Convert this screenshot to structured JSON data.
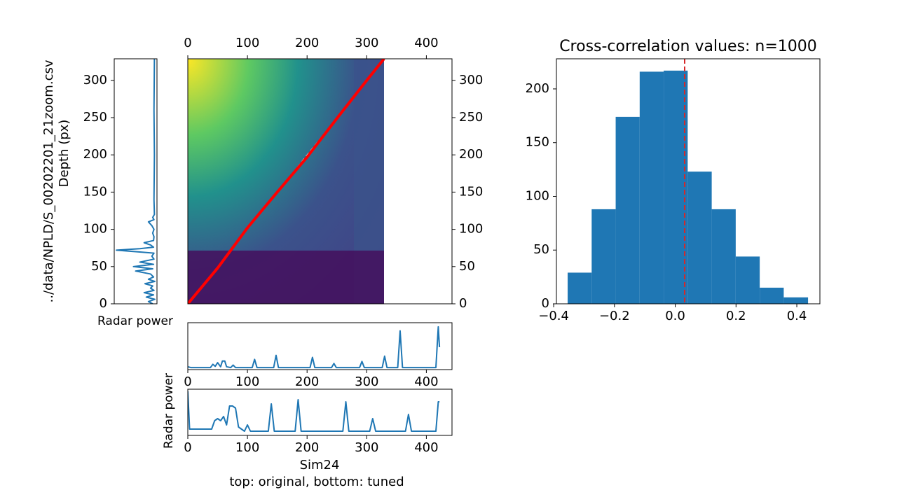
{
  "chart_data": [
    {
      "type": "line",
      "orientation": "vertical",
      "ylabel_lines": [
        "../data/NPLD/S_00202201_21zoom.csv",
        "Depth (px)"
      ],
      "xlabel": "Radar power",
      "xlim": [
        0,
        1
      ],
      "ylim": [
        0,
        329
      ],
      "yticks": [
        0,
        50,
        100,
        150,
        200,
        250,
        300
      ],
      "series": [
        {
          "color": "#1f77b4",
          "x": [
            0,
            3,
            6,
            9,
            12,
            15,
            18,
            21,
            24,
            27,
            30,
            33,
            36,
            40,
            44,
            47,
            50,
            53,
            56,
            60,
            64,
            68,
            70,
            72,
            74,
            76,
            79,
            82,
            85,
            90,
            95,
            100,
            105,
            110,
            113,
            116,
            120,
            140,
            200,
            260,
            329
          ],
          "values": [
            0.9,
            0.8,
            0.95,
            0.75,
            0.92,
            0.7,
            0.93,
            0.85,
            0.9,
            0.72,
            0.95,
            0.8,
            0.92,
            0.85,
            0.5,
            0.9,
            0.45,
            0.92,
            0.6,
            0.93,
            0.88,
            0.93,
            0.5,
            0.05,
            0.6,
            0.92,
            0.85,
            0.7,
            0.92,
            0.93,
            0.9,
            0.93,
            0.88,
            0.8,
            0.93,
            0.9,
            0.94,
            0.93,
            0.94,
            0.93,
            0.94
          ]
        }
      ]
    },
    {
      "type": "image",
      "xlim": [
        0,
        443
      ],
      "ylim": [
        0,
        329
      ],
      "xticks": [
        0,
        100,
        200,
        300,
        400
      ],
      "yticks": [
        0,
        50,
        100,
        150,
        200,
        250,
        300
      ],
      "series": [
        {
          "color": "#ffffff",
          "style": "dashed",
          "x": [
            0,
            329
          ],
          "values": [
            0,
            329
          ]
        },
        {
          "color": "#ff0000",
          "style": "solid",
          "x": [
            0,
            50,
            100,
            150,
            200,
            250,
            300,
            329
          ],
          "values": [
            0,
            48,
            102,
            150,
            197,
            249,
            300,
            329
          ]
        }
      ]
    },
    {
      "type": "line",
      "xlim": [
        0,
        443
      ],
      "ylim": [
        -0.05,
        1.1
      ],
      "xticks": [
        0,
        100,
        200,
        300,
        400
      ],
      "series": [
        {
          "color": "#1f77b4",
          "x": [
            0,
            5,
            38,
            42,
            46,
            50,
            55,
            58,
            62,
            65,
            72,
            76,
            80,
            108,
            112,
            116,
            144,
            148,
            152,
            205,
            209,
            213,
            241,
            245,
            249,
            288,
            292,
            296,
            326,
            330,
            334,
            352,
            356,
            360,
            416,
            420,
            422
          ],
          "values": [
            0.02,
            0,
            0,
            0.08,
            0.03,
            0.12,
            0.02,
            0.16,
            0.16,
            0.02,
            0,
            0.06,
            0,
            0,
            0.2,
            0,
            0,
            0.3,
            0,
            0,
            0.25,
            0,
            0,
            0.1,
            0,
            0,
            0.15,
            0,
            0,
            0.28,
            0,
            0,
            0.9,
            0,
            0,
            1.0,
            0.5
          ]
        }
      ]
    },
    {
      "type": "line",
      "xlim": [
        0,
        443
      ],
      "ylim": [
        -0.05,
        1.05
      ],
      "xticks": [
        0,
        100,
        200,
        300,
        400
      ],
      "ylabel": "Radar power",
      "xlabel": "Sim24",
      "subtitle": "top: original, bottom: tuned",
      "series": [
        {
          "color": "#1f77b4",
          "x": [
            0,
            3,
            40,
            45,
            50,
            55,
            60,
            65,
            70,
            75,
            80,
            85,
            95,
            100,
            105,
            135,
            140,
            145,
            180,
            185,
            190,
            260,
            265,
            270,
            305,
            310,
            315,
            365,
            370,
            375,
            416,
            420,
            422
          ],
          "values": [
            1.0,
            0.1,
            0.1,
            0.3,
            0.35,
            0.3,
            0.4,
            0.2,
            0.65,
            0.65,
            0.6,
            0.15,
            0.05,
            0.2,
            0.05,
            0.05,
            0.7,
            0.05,
            0.05,
            0.8,
            0.05,
            0.05,
            0.75,
            0.05,
            0.05,
            0.35,
            0.05,
            0.05,
            0.45,
            0.05,
            0.05,
            0.75,
            0.75
          ]
        }
      ]
    },
    {
      "type": "hist",
      "title": "Cross-correlation values: n=1000",
      "bins": [
        -0.354,
        -0.275,
        -0.196,
        -0.117,
        -0.038,
        0.041,
        0.12,
        0.199,
        0.278,
        0.357,
        0.437
      ],
      "counts": [
        29,
        88,
        174,
        216,
        217,
        123,
        88,
        44,
        15,
        6
      ],
      "color": "#1f77b4",
      "vline": {
        "value": 0.031,
        "color": "#d62728"
      },
      "xlim": [
        -0.391,
        0.476
      ],
      "ylim": [
        0,
        228
      ],
      "xticks": [
        {
          "value": -0.4,
          "label": "−0.4"
        },
        {
          "value": -0.2,
          "label": "−0.2"
        },
        {
          "value": 0,
          "label": "0.0"
        },
        0.2,
        0.4
      ],
      "yticks": [
        0,
        50,
        100,
        150,
        200
      ]
    }
  ]
}
